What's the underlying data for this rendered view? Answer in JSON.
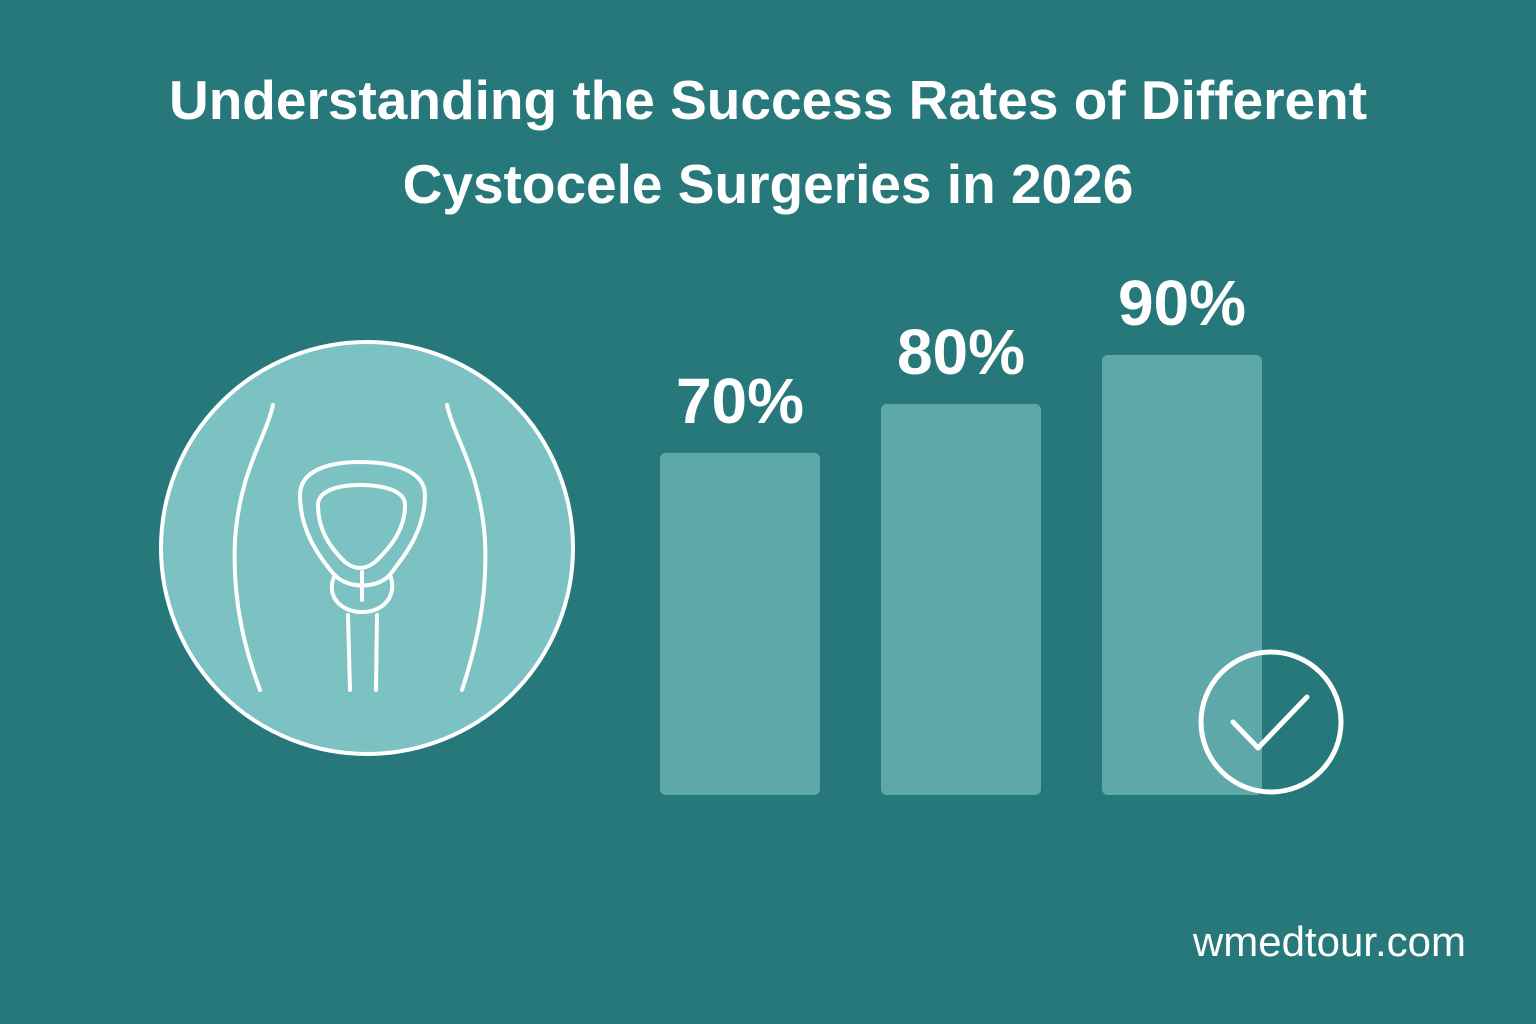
{
  "chart_data": {
    "type": "bar",
    "title": "Understanding the Success Rates of Different Cystocele Surgeries in 2026",
    "categories": [
      null,
      null,
      null
    ],
    "values": [
      70,
      80,
      90
    ],
    "value_labels": [
      "70%",
      "80%",
      "90%"
    ],
    "color": "#5fa8aa",
    "footer": "wmedtour.com"
  }
}
